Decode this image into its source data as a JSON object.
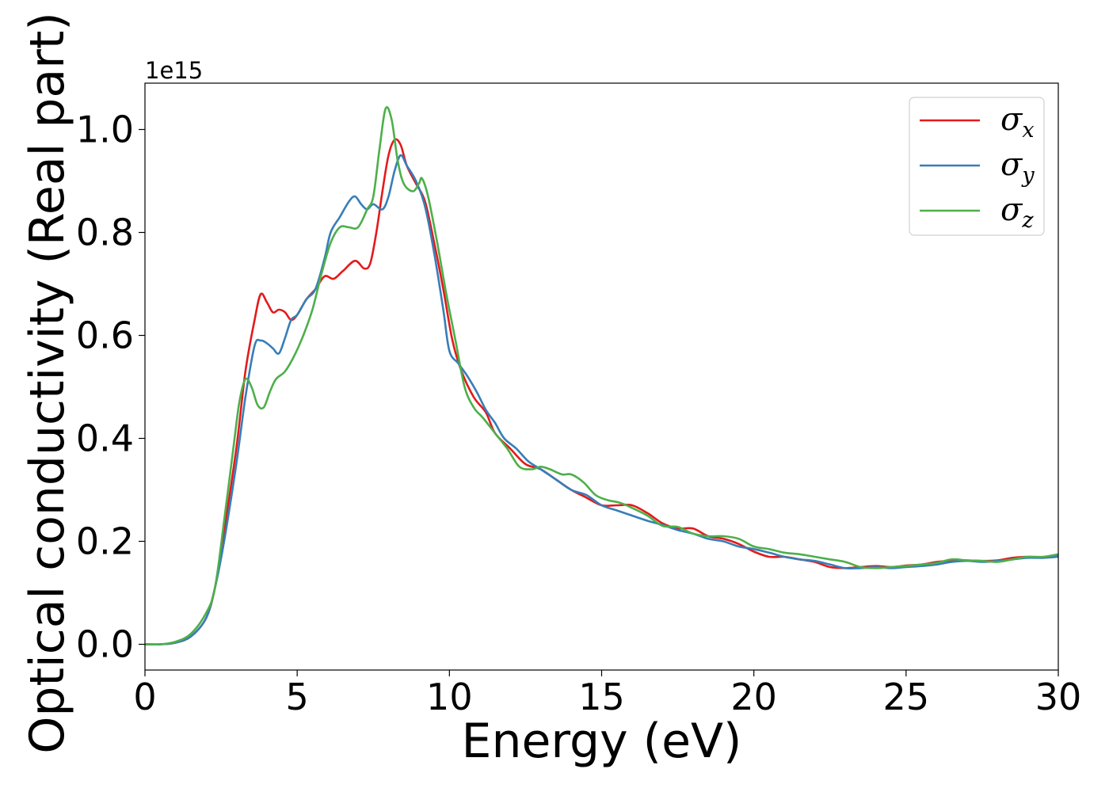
{
  "chart_data": {
    "type": "line",
    "title": "",
    "xlabel": "Energy (eV)",
    "ylabel": "Optical conductivity (Real part)",
    "y_offset_text": "1e15",
    "xlim": [
      0,
      30
    ],
    "ylim": [
      -0.05,
      1.09
    ],
    "xticks": [
      0,
      5,
      10,
      15,
      20,
      25,
      30
    ],
    "xtick_labels": [
      "0",
      "5",
      "10",
      "15",
      "20",
      "25",
      "30"
    ],
    "yticks": [
      0.0,
      0.2,
      0.4,
      0.6,
      0.8,
      1.0
    ],
    "ytick_labels": [
      "0.0",
      "0.2",
      "0.4",
      "0.6",
      "0.8",
      "1.0"
    ],
    "grid": false,
    "legend_position": "top-right",
    "series": [
      {
        "name": "σx",
        "symbol": "σ",
        "subscript": "x",
        "color": "#e41a1c",
        "points": [
          [
            0,
            0.0
          ],
          [
            0.5,
            0.0
          ],
          [
            1.0,
            0.003
          ],
          [
            1.5,
            0.015
          ],
          [
            2.0,
            0.05
          ],
          [
            2.3,
            0.11
          ],
          [
            2.6,
            0.22
          ],
          [
            3.0,
            0.38
          ],
          [
            3.3,
            0.53
          ],
          [
            3.6,
            0.63
          ],
          [
            3.8,
            0.68
          ],
          [
            4.0,
            0.665
          ],
          [
            4.2,
            0.645
          ],
          [
            4.4,
            0.65
          ],
          [
            4.6,
            0.645
          ],
          [
            4.8,
            0.63
          ],
          [
            5.0,
            0.64
          ],
          [
            5.3,
            0.67
          ],
          [
            5.6,
            0.69
          ],
          [
            5.9,
            0.715
          ],
          [
            6.2,
            0.71
          ],
          [
            6.5,
            0.725
          ],
          [
            6.9,
            0.745
          ],
          [
            7.2,
            0.73
          ],
          [
            7.4,
            0.74
          ],
          [
            7.6,
            0.8
          ],
          [
            7.8,
            0.88
          ],
          [
            8.0,
            0.95
          ],
          [
            8.2,
            0.98
          ],
          [
            8.4,
            0.97
          ],
          [
            8.6,
            0.93
          ],
          [
            8.9,
            0.895
          ],
          [
            9.2,
            0.86
          ],
          [
            9.5,
            0.78
          ],
          [
            9.8,
            0.69
          ],
          [
            10.1,
            0.59
          ],
          [
            10.4,
            0.53
          ],
          [
            10.8,
            0.48
          ],
          [
            11.2,
            0.45
          ],
          [
            11.5,
            0.41
          ],
          [
            12.0,
            0.38
          ],
          [
            12.5,
            0.35
          ],
          [
            13.0,
            0.34
          ],
          [
            13.5,
            0.32
          ],
          [
            14.0,
            0.3
          ],
          [
            14.5,
            0.285
          ],
          [
            15.0,
            0.27
          ],
          [
            15.5,
            0.27
          ],
          [
            16.0,
            0.27
          ],
          [
            16.5,
            0.255
          ],
          [
            17.0,
            0.235
          ],
          [
            17.5,
            0.225
          ],
          [
            18.0,
            0.225
          ],
          [
            18.5,
            0.21
          ],
          [
            19.0,
            0.205
          ],
          [
            19.5,
            0.195
          ],
          [
            20.0,
            0.18
          ],
          [
            20.5,
            0.17
          ],
          [
            21.0,
            0.17
          ],
          [
            21.5,
            0.165
          ],
          [
            22.0,
            0.16
          ],
          [
            22.5,
            0.15
          ],
          [
            23.0,
            0.148
          ],
          [
            23.5,
            0.15
          ],
          [
            24.0,
            0.152
          ],
          [
            24.5,
            0.15
          ],
          [
            25.0,
            0.153
          ],
          [
            25.5,
            0.155
          ],
          [
            26.0,
            0.16
          ],
          [
            26.5,
            0.162
          ],
          [
            27.0,
            0.163
          ],
          [
            27.5,
            0.162
          ],
          [
            28.0,
            0.163
          ],
          [
            28.5,
            0.168
          ],
          [
            29.0,
            0.17
          ],
          [
            29.5,
            0.168
          ],
          [
            30.0,
            0.172
          ]
        ]
      },
      {
        "name": "σy",
        "symbol": "σ",
        "subscript": "y",
        "color": "#377eb8",
        "points": [
          [
            0,
            0.0
          ],
          [
            0.5,
            0.0
          ],
          [
            1.0,
            0.003
          ],
          [
            1.5,
            0.015
          ],
          [
            2.0,
            0.05
          ],
          [
            2.3,
            0.11
          ],
          [
            2.6,
            0.2
          ],
          [
            3.0,
            0.35
          ],
          [
            3.3,
            0.48
          ],
          [
            3.6,
            0.58
          ],
          [
            3.8,
            0.59
          ],
          [
            4.0,
            0.585
          ],
          [
            4.2,
            0.575
          ],
          [
            4.4,
            0.565
          ],
          [
            4.6,
            0.595
          ],
          [
            4.8,
            0.63
          ],
          [
            5.0,
            0.64
          ],
          [
            5.3,
            0.67
          ],
          [
            5.6,
            0.69
          ],
          [
            5.9,
            0.75
          ],
          [
            6.1,
            0.8
          ],
          [
            6.4,
            0.83
          ],
          [
            6.7,
            0.86
          ],
          [
            6.9,
            0.87
          ],
          [
            7.1,
            0.855
          ],
          [
            7.3,
            0.845
          ],
          [
            7.5,
            0.855
          ],
          [
            7.8,
            0.845
          ],
          [
            8.0,
            0.87
          ],
          [
            8.2,
            0.92
          ],
          [
            8.4,
            0.95
          ],
          [
            8.6,
            0.93
          ],
          [
            8.9,
            0.9
          ],
          [
            9.2,
            0.85
          ],
          [
            9.5,
            0.76
          ],
          [
            9.8,
            0.65
          ],
          [
            10.0,
            0.57
          ],
          [
            10.3,
            0.545
          ],
          [
            10.6,
            0.52
          ],
          [
            10.9,
            0.49
          ],
          [
            11.2,
            0.455
          ],
          [
            11.5,
            0.43
          ],
          [
            11.8,
            0.4
          ],
          [
            12.2,
            0.38
          ],
          [
            12.6,
            0.355
          ],
          [
            13.0,
            0.34
          ],
          [
            13.5,
            0.32
          ],
          [
            14.0,
            0.3
          ],
          [
            14.5,
            0.29
          ],
          [
            15.0,
            0.27
          ],
          [
            15.5,
            0.26
          ],
          [
            16.0,
            0.25
          ],
          [
            16.5,
            0.24
          ],
          [
            17.0,
            0.232
          ],
          [
            17.5,
            0.222
          ],
          [
            18.0,
            0.215
          ],
          [
            18.5,
            0.205
          ],
          [
            19.0,
            0.2
          ],
          [
            19.5,
            0.19
          ],
          [
            20.0,
            0.185
          ],
          [
            20.5,
            0.178
          ],
          [
            21.0,
            0.17
          ],
          [
            21.5,
            0.165
          ],
          [
            22.0,
            0.162
          ],
          [
            22.5,
            0.155
          ],
          [
            23.0,
            0.148
          ],
          [
            23.5,
            0.148
          ],
          [
            24.0,
            0.15
          ],
          [
            24.5,
            0.148
          ],
          [
            25.0,
            0.15
          ],
          [
            25.5,
            0.152
          ],
          [
            26.0,
            0.155
          ],
          [
            26.5,
            0.16
          ],
          [
            27.0,
            0.162
          ],
          [
            27.5,
            0.16
          ],
          [
            28.0,
            0.162
          ],
          [
            28.5,
            0.165
          ],
          [
            29.0,
            0.168
          ],
          [
            29.5,
            0.168
          ],
          [
            30.0,
            0.17
          ]
        ]
      },
      {
        "name": "σz",
        "symbol": "σ",
        "subscript": "z",
        "color": "#4daf4a",
        "points": [
          [
            0,
            0.0
          ],
          [
            0.5,
            0.0
          ],
          [
            1.0,
            0.005
          ],
          [
            1.5,
            0.02
          ],
          [
            2.0,
            0.06
          ],
          [
            2.3,
            0.11
          ],
          [
            2.6,
            0.24
          ],
          [
            2.9,
            0.38
          ],
          [
            3.1,
            0.47
          ],
          [
            3.3,
            0.515
          ],
          [
            3.5,
            0.5
          ],
          [
            3.7,
            0.465
          ],
          [
            3.9,
            0.46
          ],
          [
            4.1,
            0.49
          ],
          [
            4.3,
            0.515
          ],
          [
            4.6,
            0.53
          ],
          [
            4.9,
            0.56
          ],
          [
            5.2,
            0.6
          ],
          [
            5.5,
            0.65
          ],
          [
            5.8,
            0.72
          ],
          [
            6.1,
            0.78
          ],
          [
            6.4,
            0.81
          ],
          [
            6.7,
            0.81
          ],
          [
            7.0,
            0.81
          ],
          [
            7.3,
            0.845
          ],
          [
            7.5,
            0.87
          ],
          [
            7.7,
            0.96
          ],
          [
            7.9,
            1.04
          ],
          [
            8.1,
            1.02
          ],
          [
            8.3,
            0.94
          ],
          [
            8.5,
            0.895
          ],
          [
            8.8,
            0.88
          ],
          [
            9.0,
            0.895
          ],
          [
            9.1,
            0.905
          ],
          [
            9.3,
            0.87
          ],
          [
            9.6,
            0.78
          ],
          [
            9.9,
            0.68
          ],
          [
            10.2,
            0.59
          ],
          [
            10.5,
            0.5
          ],
          [
            10.8,
            0.46
          ],
          [
            11.1,
            0.44
          ],
          [
            11.5,
            0.41
          ],
          [
            11.9,
            0.38
          ],
          [
            12.3,
            0.345
          ],
          [
            12.7,
            0.34
          ],
          [
            13.0,
            0.345
          ],
          [
            13.3,
            0.34
          ],
          [
            13.7,
            0.33
          ],
          [
            14.0,
            0.33
          ],
          [
            14.4,
            0.315
          ],
          [
            14.8,
            0.29
          ],
          [
            15.2,
            0.28
          ],
          [
            15.6,
            0.275
          ],
          [
            16.0,
            0.265
          ],
          [
            16.5,
            0.25
          ],
          [
            17.0,
            0.23
          ],
          [
            17.5,
            0.228
          ],
          [
            18.0,
            0.215
          ],
          [
            18.5,
            0.21
          ],
          [
            19.0,
            0.21
          ],
          [
            19.5,
            0.205
          ],
          [
            20.0,
            0.19
          ],
          [
            20.5,
            0.185
          ],
          [
            21.0,
            0.178
          ],
          [
            21.5,
            0.175
          ],
          [
            22.0,
            0.17
          ],
          [
            22.5,
            0.165
          ],
          [
            23.0,
            0.16
          ],
          [
            23.5,
            0.15
          ],
          [
            24.0,
            0.148
          ],
          [
            24.5,
            0.15
          ],
          [
            25.0,
            0.152
          ],
          [
            25.5,
            0.155
          ],
          [
            26.0,
            0.158
          ],
          [
            26.5,
            0.165
          ],
          [
            27.0,
            0.163
          ],
          [
            27.5,
            0.162
          ],
          [
            28.0,
            0.16
          ],
          [
            28.5,
            0.165
          ],
          [
            29.0,
            0.17
          ],
          [
            29.5,
            0.17
          ],
          [
            30.0,
            0.175
          ]
        ]
      }
    ]
  }
}
